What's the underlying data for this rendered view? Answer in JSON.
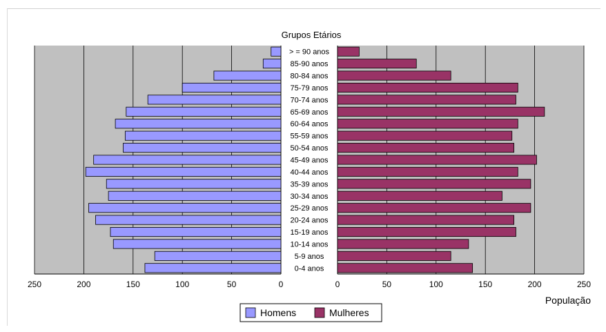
{
  "chart_data": {
    "type": "bar",
    "orientation": "horizontal",
    "title": "Grupos Etários",
    "xlabel": "População",
    "categories": [
      ">= 90 anos",
      "85-90 anos",
      "80-84 anos",
      "75-79 anos",
      "70-74 anos",
      "65-69 anos",
      "60-64 anos",
      "55-59 anos",
      "50-54 anos",
      "45-49 anos",
      "40-44 anos",
      "35-39 anos",
      "30-34 anos",
      "25-29 anos",
      "20-24 anos",
      "15-19 anos",
      "10-14 anos",
      "5-9 anos",
      "0-4 anos"
    ],
    "category_labels": [
      "> = 90 anos",
      "85-90 anos",
      "80-84 anos",
      "75-79 anos",
      "70-74 anos",
      "65-69 anos",
      "60-64 anos",
      "55-59 anos",
      "50-54 anos",
      "45-49 anos",
      "40-44 anos",
      "35-39 anos",
      "30-34 anos",
      "25-29 anos",
      "20-24 anos",
      "15-19 anos",
      "10-14 anos",
      "5-9 anos",
      "0-4 anos"
    ],
    "series": [
      {
        "name": "Homens",
        "color": "#9999ff",
        "values": [
          10,
          18,
          68,
          100,
          135,
          157,
          168,
          158,
          160,
          190,
          198,
          177,
          175,
          195,
          188,
          173,
          170,
          128,
          138
        ]
      },
      {
        "name": "Mulheres",
        "color": "#993366",
        "values": [
          22,
          80,
          115,
          183,
          181,
          210,
          183,
          177,
          179,
          202,
          183,
          196,
          167,
          196,
          179,
          181,
          133,
          115,
          137
        ]
      }
    ],
    "xlim": [
      0,
      250
    ],
    "xticks": [
      "250",
      "200",
      "150",
      "100",
      "50",
      "0",
      "0",
      "50",
      "100",
      "150",
      "200",
      "250"
    ],
    "grid": true,
    "legend_position": "bottom-center",
    "plot_background": "#c0c0c0"
  }
}
